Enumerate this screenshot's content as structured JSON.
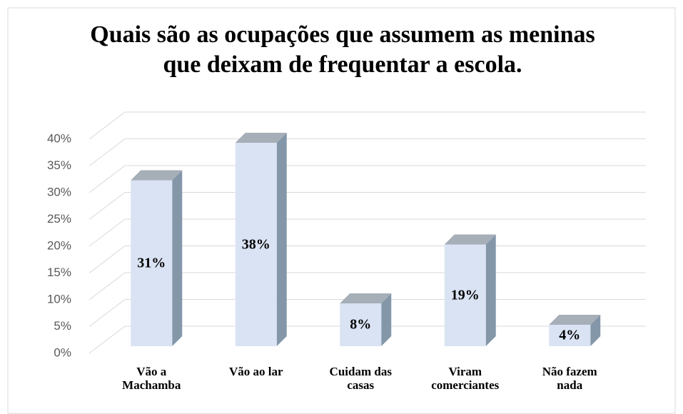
{
  "chart_data": {
    "type": "bar3d",
    "title": "Quais são as ocupações que assumem as meninas que deixam de frequentar a escola.",
    "categories": [
      "Vão a Machamba",
      "Vão ao lar",
      "Cuidam das casas",
      "Viram comerciantes",
      "Não fazem nada"
    ],
    "values": [
      31,
      38,
      8,
      19,
      4
    ],
    "value_labels": [
      "31%",
      "38%",
      "8%",
      "19%",
      "4%"
    ],
    "color": "#dae3f3",
    "ylim": [
      0,
      40
    ],
    "yticks": [
      {
        "value": 0,
        "label": "0%"
      },
      {
        "value": 5,
        "label": "5%"
      },
      {
        "value": 10,
        "label": "10%"
      },
      {
        "value": 15,
        "label": "15%"
      },
      {
        "value": 20,
        "label": "20%"
      },
      {
        "value": 25,
        "label": "25%"
      },
      {
        "value": 30,
        "label": "30%"
      },
      {
        "value": 35,
        "label": "35%"
      },
      {
        "value": 40,
        "label": "40%"
      }
    ],
    "grid": true
  }
}
